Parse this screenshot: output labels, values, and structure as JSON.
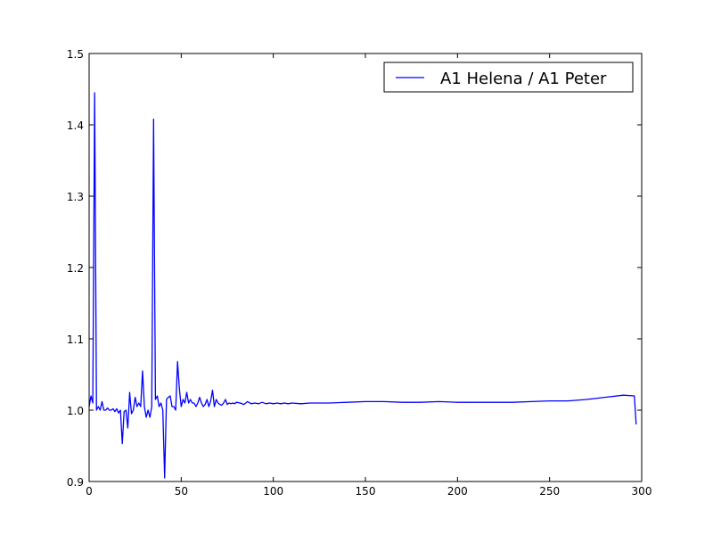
{
  "chart_data": {
    "type": "line",
    "title": "",
    "xlabel": "",
    "ylabel": "",
    "xlim": [
      0,
      300
    ],
    "ylim": [
      0.9,
      1.5
    ],
    "xticks": [
      0,
      50,
      100,
      150,
      200,
      250,
      300
    ],
    "yticks": [
      0.9,
      1.0,
      1.1,
      1.2,
      1.3,
      1.4,
      1.5
    ],
    "xtick_labels": [
      "0",
      "50",
      "100",
      "150",
      "200",
      "250",
      "300"
    ],
    "ytick_labels": [
      "0.9",
      "1.0",
      "1.1",
      "1.2",
      "1.3",
      "1.4",
      "1.5"
    ],
    "grid": false,
    "legend_position": "top-right",
    "line_color": "#0000ff",
    "series": [
      {
        "name": "A1 Helena / A1 Peter",
        "x": [
          0,
          1,
          2,
          3,
          4,
          5,
          6,
          7,
          8,
          9,
          10,
          11,
          12,
          13,
          14,
          15,
          16,
          17,
          18,
          19,
          20,
          21,
          22,
          23,
          24,
          25,
          26,
          27,
          28,
          29,
          30,
          31,
          32,
          33,
          34,
          35,
          36,
          37,
          38,
          39,
          40,
          41,
          42,
          43,
          44,
          45,
          46,
          47,
          48,
          49,
          50,
          51,
          52,
          53,
          54,
          55,
          56,
          57,
          58,
          59,
          60,
          61,
          62,
          63,
          64,
          65,
          66,
          67,
          68,
          69,
          70,
          71,
          72,
          73,
          74,
          75,
          76,
          77,
          78,
          79,
          80,
          82,
          84,
          86,
          88,
          90,
          92,
          94,
          96,
          98,
          100,
          102,
          104,
          106,
          108,
          110,
          115,
          120,
          125,
          130,
          140,
          150,
          160,
          170,
          180,
          190,
          200,
          210,
          220,
          230,
          240,
          250,
          260,
          270,
          280,
          290,
          296,
          297
        ],
        "y": [
          1.005,
          1.02,
          1.01,
          1.445,
          1.0,
          1.005,
          1.0,
          1.012,
          1.0,
          1.0,
          1.003,
          1.0,
          1.0,
          1.002,
          0.998,
          1.002,
          0.996,
          1.0,
          0.953,
          0.998,
          1.0,
          0.975,
          1.025,
          0.995,
          1.0,
          1.018,
          1.005,
          1.01,
          1.005,
          1.055,
          1.005,
          0.99,
          1.0,
          0.99,
          1.005,
          1.408,
          1.015,
          1.02,
          1.005,
          1.01,
          1.0,
          0.905,
          1.015,
          1.018,
          1.02,
          1.005,
          1.005,
          1.0,
          1.068,
          1.03,
          1.005,
          1.015,
          1.01,
          1.025,
          1.01,
          1.015,
          1.01,
          1.01,
          1.005,
          1.01,
          1.018,
          1.01,
          1.005,
          1.008,
          1.015,
          1.005,
          1.013,
          1.028,
          1.005,
          1.015,
          1.01,
          1.008,
          1.007,
          1.01,
          1.015,
          1.008,
          1.01,
          1.009,
          1.01,
          1.009,
          1.011,
          1.01,
          1.008,
          1.012,
          1.009,
          1.01,
          1.009,
          1.011,
          1.009,
          1.01,
          1.009,
          1.01,
          1.009,
          1.01,
          1.009,
          1.01,
          1.009,
          1.01,
          1.01,
          1.01,
          1.011,
          1.012,
          1.012,
          1.011,
          1.011,
          1.012,
          1.011,
          1.011,
          1.011,
          1.011,
          1.012,
          1.013,
          1.013,
          1.015,
          1.018,
          1.021,
          1.02,
          0.98
        ]
      }
    ]
  }
}
